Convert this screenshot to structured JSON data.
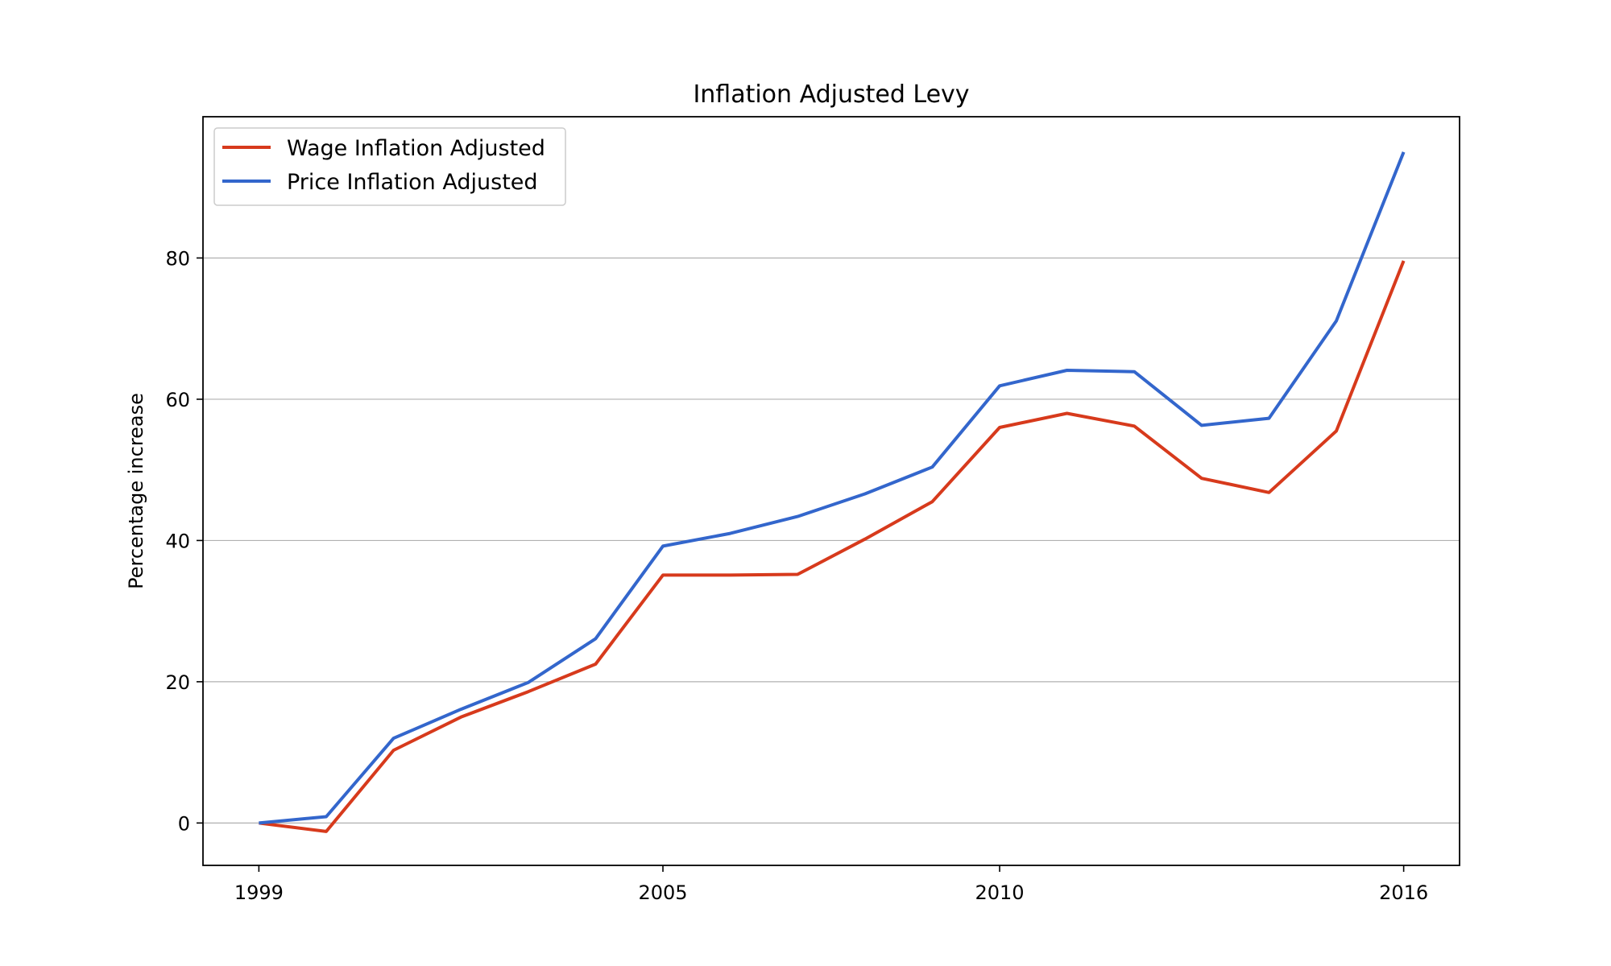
{
  "chart_data": {
    "type": "line",
    "title": "Inflation Adjusted Levy",
    "xlabel": "",
    "ylabel": "Percentage increase",
    "x": [
      1999,
      2000,
      2001,
      2002,
      2003,
      2004,
      2005,
      2006,
      2007,
      2008,
      2009,
      2010,
      2011,
      2012,
      2013,
      2014,
      2015,
      2016
    ],
    "x_ticks": [
      1999,
      2005,
      2010,
      2016
    ],
    "y_ticks": [
      0,
      20,
      40,
      60,
      80
    ],
    "xlim": [
      1998.17,
      2016.83
    ],
    "ylim": [
      -6,
      100
    ],
    "grid": "horizontal",
    "legend_position": "top-left",
    "series": [
      {
        "name": "Wage Inflation Adjusted",
        "color": "#d73a1c",
        "values": [
          0,
          -1.2,
          10.3,
          15,
          18.6,
          22.5,
          35.1,
          35.1,
          35.2,
          40.2,
          45.5,
          56,
          58,
          56.2,
          48.8,
          46.8,
          55.5,
          79.6
        ]
      },
      {
        "name": "Price Inflation Adjusted",
        "color": "#3366cc",
        "values": [
          0,
          0.9,
          12,
          16.1,
          19.9,
          26.1,
          39.2,
          41,
          43.4,
          46.6,
          50.4,
          61.9,
          64.1,
          63.9,
          56.3,
          57.3,
          71.1,
          95
        ]
      }
    ]
  }
}
